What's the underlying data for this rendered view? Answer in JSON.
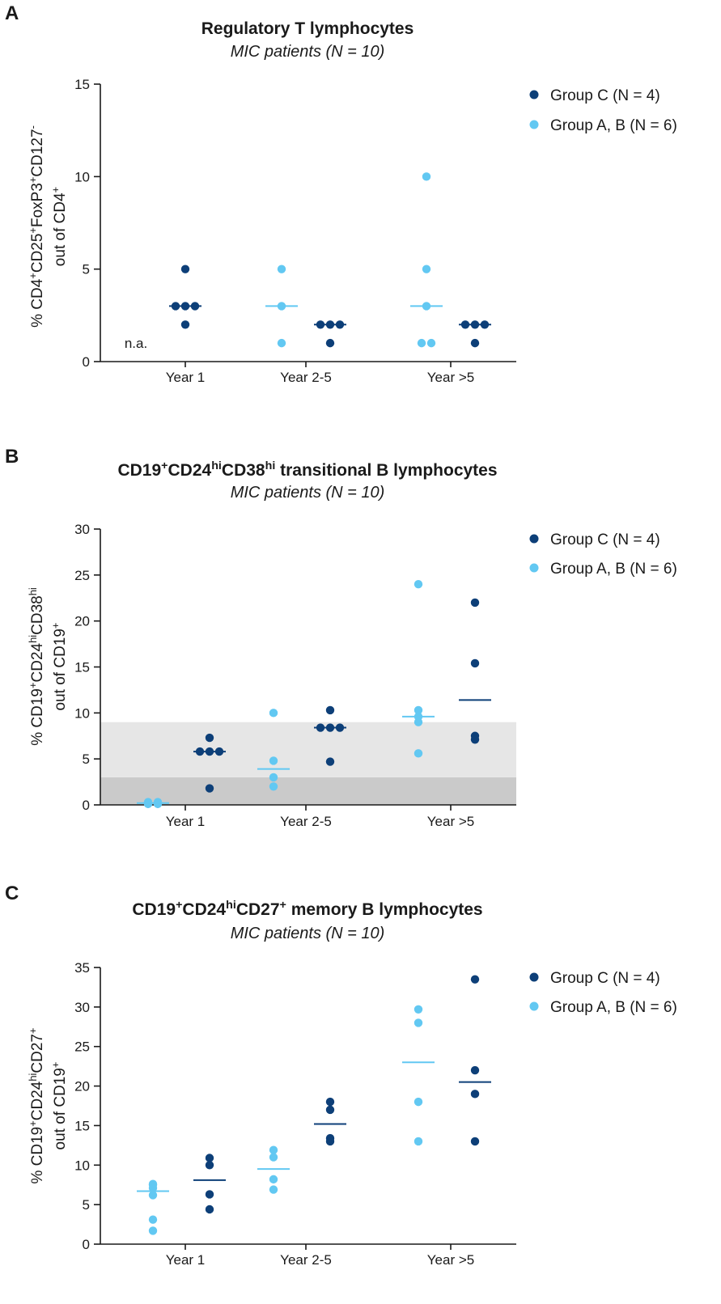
{
  "colors": {
    "groupC": "#0d3f78",
    "groupAB": "#62c8f2",
    "band_light": "#e6e6e6",
    "band_dark": "#cacaca"
  },
  "legend": {
    "groupC": "Group C (N = 4)",
    "groupAB": "Group A, B (N = 6)"
  },
  "categories": [
    "Year 1",
    "Year 2-5",
    "Year >5"
  ],
  "chart_data": [
    {
      "panel": "A",
      "type": "scatter",
      "title": "Regulatory T lymphocytes",
      "subtitle": "MIC patients (N = 10)",
      "ylabel_line1_parts": [
        "% CD4",
        "+",
        "CD25",
        "+",
        "FoxP3",
        "+",
        "CD127",
        "-"
      ],
      "ylabel_line2_parts": [
        "out of CD4",
        "+"
      ],
      "ylim": [
        0,
        15
      ],
      "yticks": [
        0,
        5,
        10,
        15
      ],
      "annotation": "n.a.",
      "reference_bands": [],
      "series": [
        {
          "name": "Group A, B (N = 6)",
          "key": "groupAB",
          "points": [
            [
              1,
              5
            ],
            [
              1,
              3
            ],
            [
              1,
              1
            ],
            [
              2,
              10
            ],
            [
              2,
              5
            ],
            [
              2,
              1
            ],
            [
              2,
              1
            ],
            [
              2,
              3
            ]
          ],
          "medians": [
            [
              1,
              3
            ],
            [
              2,
              3
            ]
          ]
        },
        {
          "name": "Group C (N = 4)",
          "key": "groupC",
          "points": [
            [
              0,
              5
            ],
            [
              0,
              3
            ],
            [
              0,
              3
            ],
            [
              0,
              3
            ],
            [
              0,
              2
            ],
            [
              1,
              2
            ],
            [
              1,
              2
            ],
            [
              1,
              2
            ],
            [
              1,
              1
            ],
            [
              2,
              2
            ],
            [
              2,
              2
            ],
            [
              2,
              2
            ],
            [
              2,
              1
            ]
          ],
          "medians": [
            [
              0,
              3
            ],
            [
              1,
              2
            ],
            [
              2,
              2
            ]
          ]
        }
      ]
    },
    {
      "panel": "B",
      "type": "scatter",
      "title_parts": [
        "CD19",
        "+",
        "CD24",
        "hi",
        "CD38",
        "hi",
        " transitional B lymphocytes"
      ],
      "subtitle": "MIC patients (N = 10)",
      "ylabel_line1_parts": [
        "% CD19",
        "+",
        "CD24",
        "hi",
        "CD38",
        "hi"
      ],
      "ylabel_line2_parts": [
        "out of CD19",
        "+"
      ],
      "ylim": [
        0,
        30
      ],
      "yticks": [
        0,
        5,
        10,
        15,
        20,
        25,
        30
      ],
      "reference_bands": [
        {
          "from": 0,
          "to": 3,
          "key": "band_dark"
        },
        {
          "from": 3,
          "to": 9,
          "key": "band_light"
        }
      ],
      "series": [
        {
          "name": "Group A, B (N = 6)",
          "key": "groupAB",
          "points": [
            [
              0,
              0.1
            ],
            [
              0,
              0.3
            ],
            [
              0,
              0.2
            ],
            [
              0,
              0.3
            ],
            [
              0,
              0.1
            ],
            [
              0,
              0.2
            ],
            [
              1,
              10
            ],
            [
              1,
              4.8
            ],
            [
              1,
              3
            ],
            [
              1,
              2
            ],
            [
              2,
              24
            ],
            [
              2,
              10.3
            ],
            [
              2,
              9.6
            ],
            [
              2,
              9
            ],
            [
              2,
              5.6
            ]
          ],
          "medians": [
            [
              0,
              0.2
            ],
            [
              1,
              3.9
            ],
            [
              2,
              9.6
            ]
          ]
        },
        {
          "name": "Group C (N = 4)",
          "key": "groupC",
          "points": [
            [
              0,
              7.3
            ],
            [
              0,
              5.8
            ],
            [
              0,
              5.8
            ],
            [
              0,
              5.8
            ],
            [
              0,
              1.8
            ],
            [
              1,
              10.3
            ],
            [
              1,
              8.4
            ],
            [
              1,
              8.4
            ],
            [
              1,
              8.4
            ],
            [
              1,
              4.7
            ],
            [
              2,
              22
            ],
            [
              2,
              15.4
            ],
            [
              2,
              7.5
            ],
            [
              2,
              7.1
            ]
          ],
          "medians": [
            [
              0,
              5.8
            ],
            [
              1,
              8.4
            ],
            [
              2,
              11.4
            ]
          ]
        }
      ]
    },
    {
      "panel": "C",
      "type": "scatter",
      "title_parts": [
        "CD19",
        "+",
        "CD24",
        "hi",
        "CD27",
        "+",
        " memory B lymphocytes"
      ],
      "subtitle": "MIC patients (N = 10)",
      "ylabel_line1_parts": [
        "% CD19",
        "+",
        "CD24",
        "hi",
        "CD27",
        "+"
      ],
      "ylabel_line2_parts": [
        "out of CD19",
        "+"
      ],
      "ylim": [
        0,
        35
      ],
      "yticks": [
        0,
        5,
        10,
        15,
        20,
        25,
        30,
        35
      ],
      "reference_bands": [],
      "series": [
        {
          "name": "Group A, B (N = 6)",
          "key": "groupAB",
          "points": [
            [
              0,
              7.5
            ],
            [
              0,
              7.6
            ],
            [
              0,
              7.1
            ],
            [
              0,
              6.2
            ],
            [
              0,
              3.1
            ],
            [
              0,
              1.7
            ],
            [
              1,
              11.9
            ],
            [
              1,
              11
            ],
            [
              1,
              8.2
            ],
            [
              1,
              6.9
            ],
            [
              2,
              29.7
            ],
            [
              2,
              28
            ],
            [
              2,
              18
            ],
            [
              2,
              13
            ]
          ],
          "medians": [
            [
              0,
              6.7
            ],
            [
              1,
              9.5
            ],
            [
              2,
              23
            ]
          ]
        },
        {
          "name": "Group C (N = 4)",
          "key": "groupC",
          "points": [
            [
              0,
              10.9
            ],
            [
              0,
              10
            ],
            [
              0,
              6.3
            ],
            [
              0,
              4.4
            ],
            [
              1,
              18
            ],
            [
              1,
              17
            ],
            [
              1,
              13.4
            ],
            [
              1,
              13
            ],
            [
              2,
              33.5
            ],
            [
              2,
              22
            ],
            [
              2,
              19
            ],
            [
              2,
              13
            ]
          ],
          "medians": [
            [
              0,
              8.1
            ],
            [
              1,
              15.2
            ],
            [
              2,
              20.5
            ]
          ]
        }
      ]
    }
  ]
}
